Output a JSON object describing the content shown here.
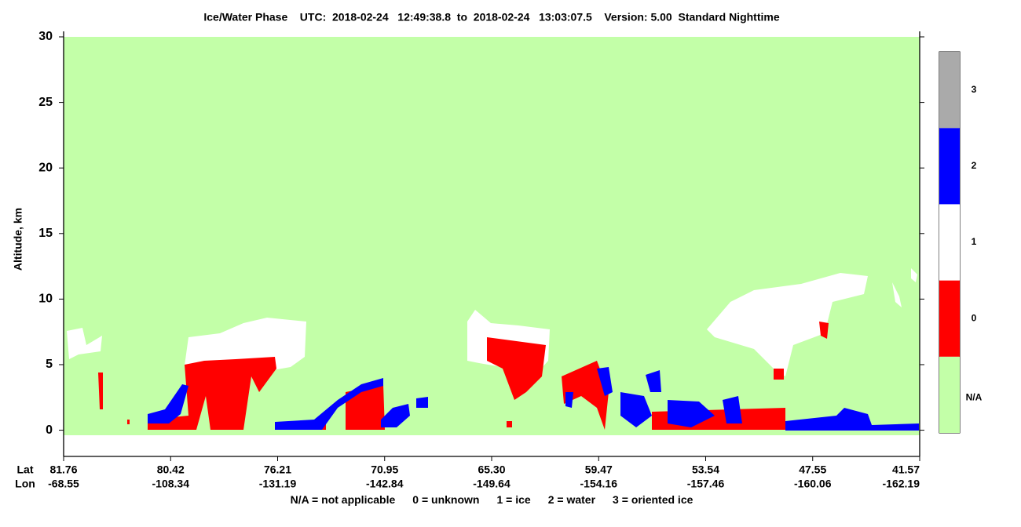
{
  "chart_data": {
    "type": "curtain",
    "title": "Ice/Water Phase    UTC:  2018-02-24   12:49:38.8  to  2018-02-24   13:03:07.5    Version: 5.00  Standard Nighttime",
    "y_label": "Altitude, km",
    "ylim": [
      -2,
      30
    ],
    "yticks": [
      0,
      5,
      10,
      15,
      20,
      25,
      30
    ],
    "x_row_labels": [
      "Lat",
      "Lon"
    ],
    "lat": [
      "81.76",
      "80.42",
      "76.21",
      "70.95",
      "65.30",
      "59.47",
      "53.54",
      "47.55",
      "41.57"
    ],
    "lon": [
      "-68.55",
      "-108.34",
      "-131.19",
      "-142.84",
      "-149.64",
      "-154.16",
      "-157.46",
      "-160.06",
      "-162.19"
    ],
    "classes": [
      {
        "code": "N/A",
        "name": "not applicable",
        "color": "#c3ffa8"
      },
      {
        "code": "0",
        "name": "unknown",
        "color": "#ff0000"
      },
      {
        "code": "1",
        "name": "ice",
        "color": "#ffffff"
      },
      {
        "code": "2",
        "name": "water",
        "color": "#0000ff"
      },
      {
        "code": "3",
        "name": "oriented ice",
        "color": "#aaaaaa"
      }
    ],
    "legend_separator": " = "
  }
}
